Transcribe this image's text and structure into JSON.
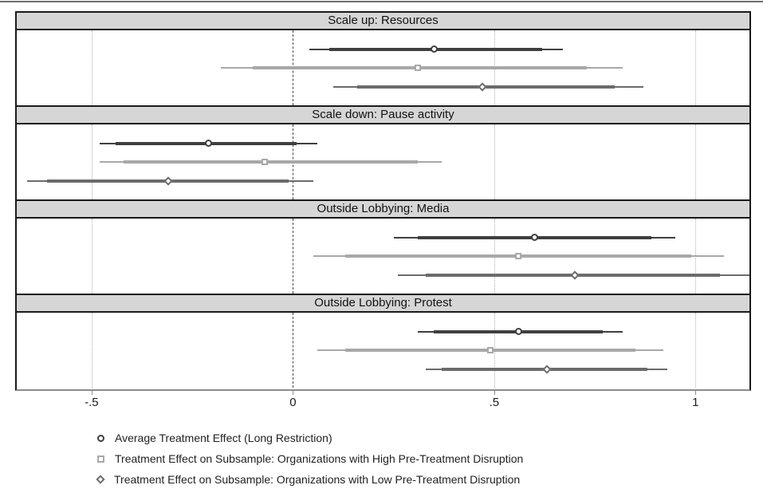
{
  "chart_data": {
    "type": "scatter",
    "subtype": "forest-coefficient-plot",
    "title": "",
    "xlabel": "",
    "ylabel": "",
    "xlim": [
      -0.686,
      1.134
    ],
    "grid": "vertical-dotted-gridlines",
    "zero_reference_line": 0,
    "dotted_gridlines": [
      -0.5,
      0.5,
      1
    ],
    "x_ticks": [
      {
        "label": "-.5",
        "value": -0.5
      },
      {
        "label": "0",
        "value": 0
      },
      {
        "label": ".5",
        "value": 0.5
      },
      {
        "label": "1",
        "value": 1
      }
    ],
    "series_keys": [
      "ate",
      "high_disruption",
      "low_disruption"
    ],
    "panels": [
      {
        "title": "Scale up: Resources",
        "estimates": [
          {
            "series": "ate",
            "marker": "circle",
            "point": 0.35,
            "ci_thick": [
              0.09,
              0.62
            ],
            "ci_thin": [
              0.04,
              0.67
            ]
          },
          {
            "series": "high_disruption",
            "marker": "square",
            "point": 0.31,
            "ci_thick": [
              -0.1,
              0.73
            ],
            "ci_thin": [
              -0.18,
              0.82
            ]
          },
          {
            "series": "low_disruption",
            "marker": "diamond",
            "point": 0.47,
            "ci_thick": [
              0.16,
              0.8
            ],
            "ci_thin": [
              0.1,
              0.87
            ]
          }
        ]
      },
      {
        "title": "Scale down: Pause activity",
        "estimates": [
          {
            "series": "ate",
            "marker": "circle",
            "point": -0.21,
            "ci_thick": [
              -0.44,
              0.01
            ],
            "ci_thin": [
              -0.48,
              0.06
            ]
          },
          {
            "series": "high_disruption",
            "marker": "square",
            "point": -0.07,
            "ci_thick": [
              -0.42,
              0.31
            ],
            "ci_thin": [
              -0.48,
              0.37
            ]
          },
          {
            "series": "low_disruption",
            "marker": "diamond",
            "point": -0.31,
            "ci_thick": [
              -0.61,
              -0.01
            ],
            "ci_thin": [
              -0.66,
              0.05
            ]
          }
        ]
      },
      {
        "title": "Outside Lobbying: Media",
        "estimates": [
          {
            "series": "ate",
            "marker": "circle",
            "point": 0.6,
            "ci_thick": [
              0.31,
              0.89
            ],
            "ci_thin": [
              0.25,
              0.95
            ]
          },
          {
            "series": "high_disruption",
            "marker": "square",
            "point": 0.56,
            "ci_thick": [
              0.13,
              0.99
            ],
            "ci_thin": [
              0.05,
              1.07
            ]
          },
          {
            "series": "low_disruption",
            "marker": "diamond",
            "point": 0.7,
            "ci_thick": [
              0.33,
              1.06
            ],
            "ci_thin": [
              0.26,
              1.14
            ]
          }
        ]
      },
      {
        "title": "Outside Lobbying: Protest",
        "estimates": [
          {
            "series": "ate",
            "marker": "circle",
            "point": 0.56,
            "ci_thick": [
              0.35,
              0.77
            ],
            "ci_thin": [
              0.31,
              0.82
            ]
          },
          {
            "series": "high_disruption",
            "marker": "square",
            "point": 0.49,
            "ci_thick": [
              0.13,
              0.85
            ],
            "ci_thin": [
              0.06,
              0.92
            ]
          },
          {
            "series": "low_disruption",
            "marker": "diamond",
            "point": 0.63,
            "ci_thick": [
              0.37,
              0.88
            ],
            "ci_thin": [
              0.33,
              0.93
            ]
          }
        ]
      }
    ],
    "legend": {
      "position": "bottom-left",
      "entries": [
        {
          "marker": "circle",
          "series": "ate",
          "label": "Average Treatment Effect (Long Restriction)"
        },
        {
          "marker": "square",
          "series": "high_disruption",
          "label": "Treatment Effect on Subsample: Organizations with High Pre-Treatment Disruption"
        },
        {
          "marker": "diamond",
          "series": "low_disruption",
          "label": "Treatment Effect on Subsample: Organizations with Low Pre-Treatment Disruption"
        }
      ]
    },
    "colors": {
      "ate": "#3f3f3f",
      "high_disruption": "#a8a8a8",
      "low_disruption": "#6b6b6b",
      "panel_header_bg": "#d6d6d6",
      "frame_border": "#1a1a1a",
      "axis_line": "#8c8c8c",
      "gridline": "#b3b3b3",
      "zero_line": "#4a4a4a",
      "top_rule": "#6e6e6e"
    }
  }
}
